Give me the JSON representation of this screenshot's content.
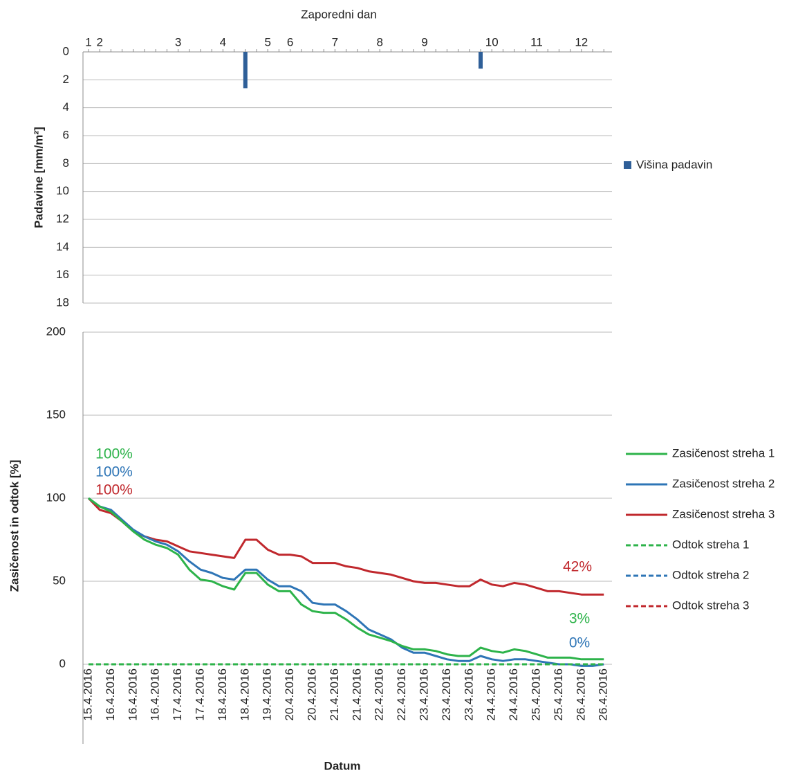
{
  "chart_data": [
    {
      "type": "bar",
      "x_label": "Zaporedni dan",
      "y_label": "Padavine [mm/m²]",
      "categories": [
        "1",
        "2",
        null,
        null,
        null,
        null,
        null,
        null,
        "3",
        null,
        null,
        null,
        "4",
        null,
        null,
        null,
        "5",
        null,
        "6",
        null,
        null,
        null,
        "7",
        null,
        null,
        null,
        "8",
        null,
        null,
        null,
        "9",
        null,
        null,
        null,
        null,
        null,
        "10",
        null,
        null,
        null,
        "11",
        null,
        null,
        null,
        "12",
        null,
        null
      ],
      "series": [
        {
          "name": "Višina padavin",
          "color": "#2f5f98",
          "values": [
            0,
            0,
            0,
            0,
            0,
            0,
            0,
            0,
            0,
            0,
            0,
            0,
            0,
            0,
            2.6,
            0,
            0,
            0,
            0,
            0,
            0,
            0,
            0,
            0,
            0,
            0,
            0,
            0,
            0,
            0,
            0,
            0,
            0,
            0,
            0,
            1.2,
            0,
            0,
            0,
            0,
            0,
            0,
            0,
            0,
            0,
            0,
            0
          ]
        }
      ],
      "ylim": [
        0,
        18
      ],
      "yticks": [
        0,
        2,
        4,
        6,
        8,
        10,
        12,
        14,
        16,
        18
      ],
      "y_inverted": true,
      "grid": true,
      "legend": "right"
    },
    {
      "type": "line",
      "x_label": "Datum",
      "y_label": "Zasičenost in odtok [%]",
      "categories": [
        "15.4.2016",
        null,
        "16.4.2016",
        null,
        "16.4.2016",
        null,
        "16.4.2016",
        null,
        "17.4.2016",
        null,
        "17.4.2016",
        null,
        "18.4.2016",
        null,
        "18.4.2016",
        null,
        "19.4.2016",
        null,
        "20.4.2016",
        null,
        "20.4.2016",
        null,
        "21.4.2016",
        null,
        "21.4.2016",
        null,
        "22.4.2016",
        null,
        "22.4.2016",
        null,
        "23.4.2016",
        null,
        "23.4.2016",
        null,
        "23.4.2016",
        null,
        "24.4.2016",
        null,
        "24.4.2016",
        null,
        "25.4.2016",
        null,
        "25.4.2016",
        null,
        "26.4.2016",
        null,
        "26.4.2016"
      ],
      "series": [
        {
          "name": "Zasičenost streha 1",
          "color": "#2db34a",
          "dash": false,
          "values": [
            100,
            95,
            92,
            86,
            80,
            75,
            72,
            70,
            66,
            57,
            51,
            50,
            47,
            45,
            55,
            55,
            48,
            44,
            44,
            36,
            32,
            31,
            31,
            27,
            22,
            18,
            16,
            14,
            11,
            9,
            9,
            8,
            6,
            5,
            5,
            10,
            8,
            7,
            9,
            8,
            6,
            4,
            4,
            4,
            3,
            3,
            3
          ],
          "value_labels": [
            "100%",
            null,
            null,
            null,
            null,
            null,
            null,
            null,
            null,
            null,
            null,
            null,
            null,
            null,
            null,
            null,
            null,
            null,
            null,
            null,
            null,
            null,
            null,
            null,
            null,
            null,
            null,
            null,
            null,
            null,
            null,
            null,
            null,
            null,
            null,
            null,
            null,
            null,
            null,
            null,
            null,
            null,
            null,
            null,
            null,
            null,
            "3%"
          ]
        },
        {
          "name": "Zasičenost streha 2",
          "color": "#2e75b6",
          "dash": false,
          "values": [
            100,
            95,
            93,
            87,
            81,
            77,
            74,
            72,
            68,
            62,
            57,
            55,
            52,
            51,
            57,
            57,
            51,
            47,
            47,
            44,
            37,
            36,
            36,
            32,
            27,
            21,
            18,
            15,
            10,
            7,
            7,
            5,
            3,
            2,
            2,
            5,
            3,
            2,
            3,
            3,
            2,
            1,
            0,
            0,
            -1,
            -1,
            0
          ],
          "value_labels": [
            "100%",
            null,
            null,
            null,
            null,
            null,
            null,
            null,
            null,
            null,
            null,
            null,
            null,
            null,
            null,
            null,
            null,
            null,
            null,
            null,
            null,
            null,
            null,
            null,
            null,
            null,
            null,
            null,
            null,
            null,
            null,
            null,
            null,
            null,
            null,
            null,
            null,
            null,
            null,
            null,
            null,
            null,
            null,
            null,
            null,
            null,
            "0%"
          ]
        },
        {
          "name": "Zasičenost streha 3",
          "color": "#c0282d",
          "dash": false,
          "values": [
            100,
            93,
            91,
            86,
            80,
            77,
            75,
            74,
            71,
            68,
            67,
            66,
            65,
            64,
            75,
            75,
            69,
            66,
            66,
            65,
            61,
            61,
            61,
            59,
            58,
            56,
            55,
            54,
            52,
            50,
            49,
            49,
            48,
            47,
            47,
            51,
            48,
            47,
            49,
            48,
            46,
            44,
            44,
            43,
            42,
            42,
            42
          ],
          "value_labels": [
            "100%",
            null,
            null,
            null,
            null,
            null,
            null,
            null,
            null,
            null,
            null,
            null,
            null,
            null,
            null,
            null,
            null,
            null,
            null,
            null,
            null,
            null,
            null,
            null,
            null,
            null,
            null,
            null,
            null,
            null,
            null,
            null,
            null,
            null,
            null,
            null,
            null,
            null,
            null,
            null,
            null,
            null,
            null,
            null,
            null,
            null,
            "42%"
          ]
        },
        {
          "name": "Odtok streha 1",
          "color": "#2db34a",
          "dash": true,
          "values": [
            0,
            0,
            0,
            0,
            0,
            0,
            0,
            0,
            0,
            0,
            0,
            0,
            0,
            0,
            0,
            0,
            0,
            0,
            0,
            0,
            0,
            0,
            0,
            0,
            0,
            0,
            0,
            0,
            0,
            0,
            0,
            0,
            0,
            0,
            0,
            0,
            0,
            0,
            0,
            0,
            0,
            0,
            0,
            0,
            0,
            0,
            0
          ]
        },
        {
          "name": "Odtok streha 2",
          "color": "#2e75b6",
          "dash": true,
          "values": [
            0,
            0,
            0,
            0,
            0,
            0,
            0,
            0,
            0,
            0,
            0,
            0,
            0,
            0,
            0,
            0,
            0,
            0,
            0,
            0,
            0,
            0,
            0,
            0,
            0,
            0,
            0,
            0,
            0,
            0,
            0,
            0,
            0,
            0,
            0,
            0,
            0,
            0,
            0,
            0,
            0,
            0,
            0,
            0,
            0,
            0,
            0
          ]
        },
        {
          "name": "Odtok streha 3",
          "color": "#c0282d",
          "dash": true,
          "values": [
            0,
            0,
            0,
            0,
            0,
            0,
            0,
            0,
            0,
            0,
            0,
            0,
            0,
            0,
            0,
            0,
            0,
            0,
            0,
            0,
            0,
            0,
            0,
            0,
            0,
            0,
            0,
            0,
            0,
            0,
            0,
            0,
            0,
            0,
            0,
            0,
            0,
            0,
            0,
            0,
            0,
            0,
            0,
            0,
            0,
            0,
            0
          ]
        }
      ],
      "ylim": [
        0,
        200
      ],
      "yticks": [
        0,
        50,
        100,
        150,
        200
      ],
      "grid": true,
      "legend": "right"
    }
  ]
}
